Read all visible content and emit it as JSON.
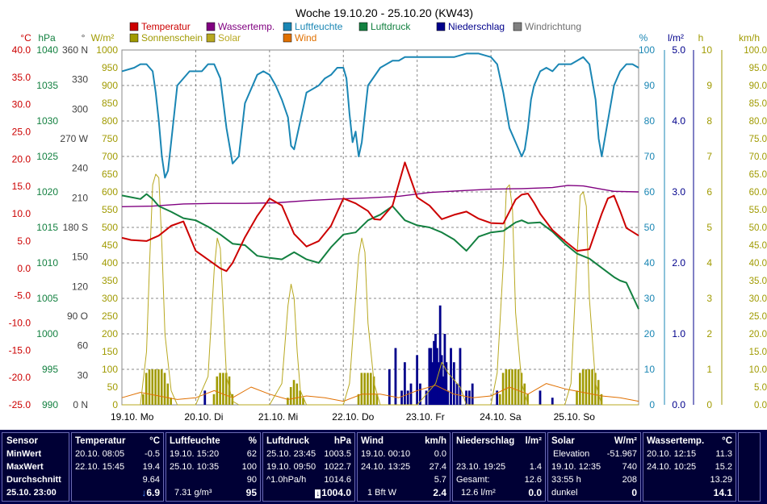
{
  "chart_data": {
    "type": "line",
    "title": "Woche 19.10.20 - 25.10.20 (KW43)",
    "x_days": [
      "19.10.",
      "20.10.",
      "21.10.",
      "22.10.",
      "23.10.",
      "24.10.",
      "25.10."
    ],
    "x_weekdays": [
      "Mo",
      "Di",
      "Mi",
      "Do",
      "Fr",
      "Sa",
      "So"
    ],
    "x_range_hours": [
      0,
      168
    ],
    "grid": true,
    "legend": [
      {
        "label": "Temperatur",
        "color": "#cc0000"
      },
      {
        "label": "Wassertemp.",
        "color": "#800080"
      },
      {
        "label": "Luftfeuchte",
        "color": "#1a86b4"
      },
      {
        "label": "Luftdruck",
        "color": "#138040"
      },
      {
        "label": "Niederschlag",
        "color": "#00008b"
      },
      {
        "label": "Windrichtung",
        "color": "#808080"
      },
      {
        "label": "Sonnenschein",
        "color": "#a09a00"
      },
      {
        "label": "Solar",
        "color": "#b8a820"
      },
      {
        "label": "Wind",
        "color": "#e07000"
      }
    ],
    "axes": {
      "temperature": {
        "unit": "°C",
        "range": [
          -25,
          40
        ],
        "ticks": [
          "40.0",
          "35.0",
          "30.0",
          "25.0",
          "20.0",
          "15.0",
          "10.0",
          "5.0",
          "0.0",
          "-5.0",
          "-10.0",
          "-15.0",
          "-20.0",
          "-25.0"
        ],
        "color": "#cc0000"
      },
      "pressure": {
        "unit": "hPa",
        "range": [
          990,
          1040
        ],
        "ticks": [
          "1040",
          "1035",
          "1030",
          "1025",
          "1020",
          "1015",
          "1010",
          "1005",
          "1000",
          "995",
          "990"
        ],
        "color": "#138040"
      },
      "wind_direction": {
        "unit": "°",
        "ticks": [
          "360 N",
          "330",
          "300",
          "270 W",
          "240",
          "210",
          "180 S",
          "150",
          "120",
          "90 O",
          "60",
          "30",
          "0 N"
        ],
        "color": "#404040"
      },
      "solar": {
        "unit": "W/m²",
        "range": [
          0,
          1000
        ],
        "ticks": [
          "1000",
          "950",
          "900",
          "850",
          "800",
          "750",
          "700",
          "650",
          "600",
          "550",
          "500",
          "450",
          "400",
          "350",
          "300",
          "250",
          "200",
          "150",
          "100",
          "50",
          "0"
        ],
        "color": "#a09a00"
      },
      "humidity": {
        "unit": "%",
        "range": [
          0,
          100
        ],
        "ticks": [
          "100",
          "90",
          "80",
          "70",
          "60",
          "50",
          "40",
          "30",
          "20",
          "10",
          "0"
        ],
        "color": "#1a86b4"
      },
      "precipitation": {
        "unit": "l/m²",
        "range": [
          0,
          5
        ],
        "ticks": [
          "5.0",
          "4.0",
          "3.0",
          "2.0",
          "1.0",
          "0.0"
        ],
        "color": "#00008b"
      },
      "sunshine": {
        "unit": "h",
        "range": [
          0,
          10
        ],
        "ticks": [
          "10",
          "9",
          "8",
          "7",
          "6",
          "5",
          "4",
          "3",
          "2",
          "1",
          "0"
        ],
        "color": "#a09a00"
      },
      "wind_speed": {
        "unit": "km/h",
        "range": [
          0,
          100
        ],
        "ticks": [
          "100.0",
          "95.0",
          "90.0",
          "85.0",
          "80.0",
          "75.0",
          "70.0",
          "65.0",
          "60.0",
          "55.0",
          "50.0",
          "45.0",
          "40.0",
          "35.0",
          "30.0",
          "25.0",
          "20.0",
          "15.0",
          "10.0",
          "5.0",
          "0.0"
        ],
        "color": "#a09a00"
      }
    },
    "series": [
      {
        "name": "Temperatur",
        "axis": "temperature",
        "color": "#cc0000",
        "x": [
          0,
          3,
          8,
          12,
          16,
          20,
          24,
          28,
          32,
          34,
          36,
          40,
          44,
          48,
          52,
          56,
          60,
          64,
          68,
          72,
          76,
          80,
          82,
          84,
          88,
          92,
          96,
          100,
          104,
          108,
          112,
          116,
          120,
          124,
          128,
          130,
          132,
          134,
          136,
          140,
          144,
          148,
          152,
          156,
          158,
          160,
          162,
          164,
          168
        ],
        "y": [
          5.6,
          5.2,
          5.0,
          6.0,
          7.8,
          8.6,
          3.2,
          1.6,
          0.0,
          -0.5,
          1.0,
          5.7,
          9.6,
          12.8,
          11.5,
          6.3,
          4.0,
          5.0,
          7.8,
          12.8,
          11.9,
          10.5,
          9.0,
          8.9,
          11.5,
          19.4,
          13.0,
          11.5,
          9.0,
          9.8,
          10.4,
          9.1,
          8.3,
          8.2,
          12.6,
          13.5,
          13.7,
          12.0,
          10.0,
          7.0,
          5.0,
          3.2,
          3.5,
          10.0,
          12.8,
          13.3,
          10.5,
          7.4,
          6.0
        ]
      },
      {
        "name": "Wassertemp.",
        "axis": "temperature",
        "color": "#800080",
        "x": [
          0,
          10,
          20,
          30,
          40,
          50,
          60,
          70,
          80,
          90,
          100,
          110,
          120,
          130,
          140,
          145,
          150,
          160,
          168
        ],
        "y": [
          11.3,
          11.4,
          11.8,
          11.9,
          11.9,
          12.0,
          12.4,
          12.7,
          12.9,
          13.2,
          13.9,
          14.2,
          14.5,
          14.6,
          14.8,
          15.2,
          15.1,
          14.1,
          14.0
        ]
      },
      {
        "name": "Luftfeuchte",
        "axis": "humidity",
        "color": "#1a86b4",
        "x": [
          0,
          4,
          6,
          8,
          10,
          11,
          12,
          13,
          14,
          15,
          16,
          18,
          22,
          26,
          28,
          30,
          32,
          34,
          36,
          38,
          40,
          44,
          46,
          48,
          50,
          52,
          54,
          55,
          56,
          58,
          60,
          64,
          66,
          68,
          70,
          72,
          73,
          74,
          75,
          76,
          77,
          78,
          80,
          84,
          86,
          88,
          90,
          92,
          94,
          96,
          100,
          104,
          108,
          112,
          116,
          120,
          122,
          124,
          126,
          128,
          130,
          131,
          132,
          133,
          134,
          136,
          138,
          140,
          142,
          144,
          146,
          148,
          150,
          152,
          154,
          155,
          156,
          158,
          160,
          162,
          164,
          166,
          168
        ],
        "y": [
          94,
          95,
          96,
          96,
          94,
          88,
          80,
          70,
          64,
          66,
          74,
          90,
          94,
          94,
          96,
          96,
          92,
          78,
          68,
          70,
          85,
          93,
          94,
          93,
          90,
          86,
          81,
          73,
          72,
          80,
          88,
          90,
          92,
          93,
          95,
          95,
          92,
          82,
          74,
          77,
          70,
          74,
          90,
          95,
          96,
          97,
          97,
          98,
          98,
          98,
          98,
          98,
          98,
          99,
          99,
          98,
          96,
          88,
          78,
          74,
          70,
          72,
          78,
          86,
          90,
          94,
          95,
          94,
          96,
          96,
          96,
          97,
          98,
          96,
          86,
          75,
          70,
          80,
          90,
          94,
          96,
          96,
          95
        ]
      },
      {
        "name": "Luftdruck",
        "axis": "pressure",
        "color": "#138040",
        "x": [
          0,
          6,
          8,
          10,
          12,
          16,
          20,
          24,
          28,
          32,
          36,
          40,
          44,
          48,
          52,
          56,
          60,
          64,
          68,
          72,
          76,
          80,
          84,
          88,
          92,
          96,
          100,
          104,
          108,
          112,
          116,
          120,
          124,
          128,
          130,
          132,
          136,
          140,
          144,
          148,
          152,
          156,
          160,
          162,
          164,
          168
        ],
        "y": [
          1019.5,
          1019.0,
          1019.7,
          1019.0,
          1018.0,
          1017.2,
          1016.3,
          1016.0,
          1015.1,
          1014.0,
          1012.7,
          1012.5,
          1011.0,
          1010.7,
          1010.5,
          1011.5,
          1010.5,
          1010.0,
          1012.2,
          1014.0,
          1014.3,
          1016.0,
          1016.8,
          1018.0,
          1016.0,
          1015.3,
          1015.0,
          1014.3,
          1013.3,
          1011.7,
          1013.7,
          1014.3,
          1014.5,
          1015.7,
          1016.0,
          1015.6,
          1015.7,
          1014.4,
          1012.7,
          1011.3,
          1010.6,
          1009.3,
          1008.0,
          1007.5,
          1007.2,
          1003.5
        ]
      },
      {
        "name": "Solar",
        "axis": "solar",
        "color": "#b8a820",
        "x": [
          0,
          6,
          8,
          9,
          10,
          11,
          12,
          13,
          14,
          16,
          18,
          24,
          28,
          30,
          31,
          32,
          33,
          34,
          36,
          38,
          48,
          52,
          54,
          55,
          56,
          57,
          58,
          60,
          62,
          72,
          74,
          77,
          78,
          79,
          80,
          82,
          84,
          96,
          100,
          102,
          104,
          106,
          108,
          110,
          112,
          120,
          122,
          124,
          125,
          126,
          127,
          128,
          130,
          132,
          144,
          146,
          148,
          149,
          150,
          151,
          152,
          154,
          156,
          168
        ],
        "y": [
          0,
          0,
          150,
          400,
          620,
          650,
          640,
          450,
          200,
          40,
          0,
          0,
          80,
          380,
          470,
          440,
          260,
          80,
          10,
          0,
          0,
          60,
          280,
          340,
          300,
          150,
          40,
          0,
          0,
          0,
          60,
          420,
          470,
          430,
          230,
          60,
          0,
          0,
          40,
          60,
          120,
          90,
          70,
          50,
          0,
          0,
          90,
          400,
          610,
          620,
          550,
          260,
          60,
          0,
          0,
          60,
          420,
          590,
          600,
          560,
          300,
          60,
          0,
          0
        ]
      },
      {
        "name": "Wind",
        "axis": "wind_speed",
        "color": "#e07000",
        "x": [
          0,
          6,
          12,
          18,
          24,
          30,
          36,
          42,
          48,
          54,
          60,
          66,
          72,
          78,
          84,
          90,
          96,
          102,
          108,
          114,
          120,
          126,
          132,
          138,
          144,
          150,
          156,
          162,
          168
        ],
        "y": [
          2.0,
          3.5,
          2.5,
          1.5,
          2.0,
          4.0,
          2.0,
          5.0,
          3.0,
          1.5,
          2.5,
          2.0,
          1.0,
          3.0,
          3.0,
          2.0,
          4.0,
          5.5,
          3.0,
          2.0,
          2.5,
          5.0,
          3.0,
          6.0,
          4.5,
          3.5,
          2.5,
          2.0,
          1.0
        ]
      },
      {
        "name": "Niederschlag",
        "axis": "precipitation",
        "color": "#00008b",
        "type": "bar",
        "x": [
          27,
          87,
          89,
          91,
          92,
          93,
          94,
          96,
          97,
          99,
          100,
          100.5,
          101,
          101.5,
          102,
          102.5,
          103,
          103.5,
          104,
          104.5,
          105,
          105.5,
          106,
          107,
          108,
          109,
          110,
          112,
          113,
          114,
          122,
          136,
          140
        ],
        "y": [
          0.2,
          0.5,
          0.8,
          0.2,
          0.6,
          0.2,
          0.3,
          0.7,
          0.3,
          0.2,
          0.8,
          0.8,
          0.6,
          0.9,
          1.0,
          0.8,
          0.6,
          1.4,
          0.7,
          0.4,
          1.0,
          0.6,
          0.2,
          0.8,
          0.6,
          0.3,
          0.8,
          0.2,
          0.2,
          0.3,
          0.2,
          0.2,
          0.1
        ]
      },
      {
        "name": "Sonnenschein",
        "axis": "sunshine",
        "color": "#a09a00",
        "type": "bar",
        "x": [
          7,
          8,
          9,
          10,
          11,
          12,
          13,
          14,
          15,
          16,
          30,
          31,
          32,
          33,
          34,
          35,
          36,
          54,
          55,
          56,
          57,
          58,
          59,
          77,
          78,
          79,
          80,
          81,
          82,
          83,
          123,
          124,
          125,
          126,
          127,
          128,
          129,
          130,
          131,
          132,
          148,
          149,
          150,
          151,
          152,
          153,
          154,
          155,
          156
        ],
        "y": [
          0.3,
          0.9,
          1.0,
          1.0,
          1.0,
          1.0,
          1.0,
          0.9,
          0.6,
          0.2,
          0.3,
          0.8,
          0.9,
          0.9,
          0.9,
          0.8,
          0.3,
          0.2,
          0.5,
          0.7,
          0.6,
          0.4,
          0.2,
          0.3,
          0.9,
          0.9,
          0.9,
          0.9,
          0.8,
          0.3,
          0.3,
          0.9,
          1.0,
          1.0,
          1.0,
          1.0,
          1.0,
          0.9,
          0.6,
          0.3,
          0.4,
          0.9,
          1.0,
          1.0,
          1.0,
          1.0,
          0.9,
          0.7,
          0.3
        ]
      }
    ]
  },
  "stats": {
    "sensor": {
      "title": "Sensor",
      "rows": [
        "MinWert",
        "MaxWert",
        "Durchschnitt"
      ],
      "current": "25.10. 23:00"
    },
    "temperature": {
      "title": "Temperatur",
      "unit": "°C",
      "min_time": "20.10. 08:05",
      "min_val": "-0.5",
      "max_time": "22.10. 15:45",
      "max_val": "19.4",
      "avg": "9.64",
      "current": "6.9"
    },
    "humidity": {
      "title": "Luftfeuchte",
      "unit": "%",
      "min_time": "19.10. 15:20",
      "min_val": "62",
      "max_time": "25.10. 10:35",
      "max_val": "100",
      "avg": "90",
      "extra": "7.31 g/m³",
      "current": "95"
    },
    "pressure": {
      "title": "Luftdruck",
      "unit": "hPa",
      "min_time": "25.10. 23:45",
      "min_val": "1003.5",
      "max_time": "19.10. 09:50",
      "max_val": "1022.7",
      "trend": "^1.0hPa/h",
      "avg": "1014.6",
      "current": "1004.0"
    },
    "wind": {
      "title": "Wind",
      "unit": "km/h",
      "min_time": "19.10. 00:10",
      "min_val": "0.0",
      "max_time": "24.10. 13:25",
      "max_val": "27.4",
      "avg": "5.7",
      "extra": "1 Bft W",
      "current": "2.4"
    },
    "precip": {
      "title": "Niederschlag",
      "unit": "l/m²",
      "max_time": "23.10. 19:25",
      "max_val": "1.4",
      "total_label": "Gesamt:",
      "total_val": "12.6",
      "extra": "12.6 l/m²",
      "current": "0.0"
    },
    "solar": {
      "title": "Solar",
      "unit": "W/m²",
      "elev_label": "Elevation",
      "elev_val": "-51.967",
      "max_time": "19.10. 12:35",
      "max_val": "740",
      "dur_label": "33:55 h",
      "dur_val": "208",
      "state_label": "dunkel",
      "current": "0"
    },
    "water": {
      "title": "Wassertemp.",
      "unit": "°C",
      "min_time": "20.10. 12:15",
      "min_val": "11.3",
      "max_time": "24.10. 10:25",
      "max_val": "15.2",
      "avg": "13.29",
      "current": "14.1"
    }
  }
}
